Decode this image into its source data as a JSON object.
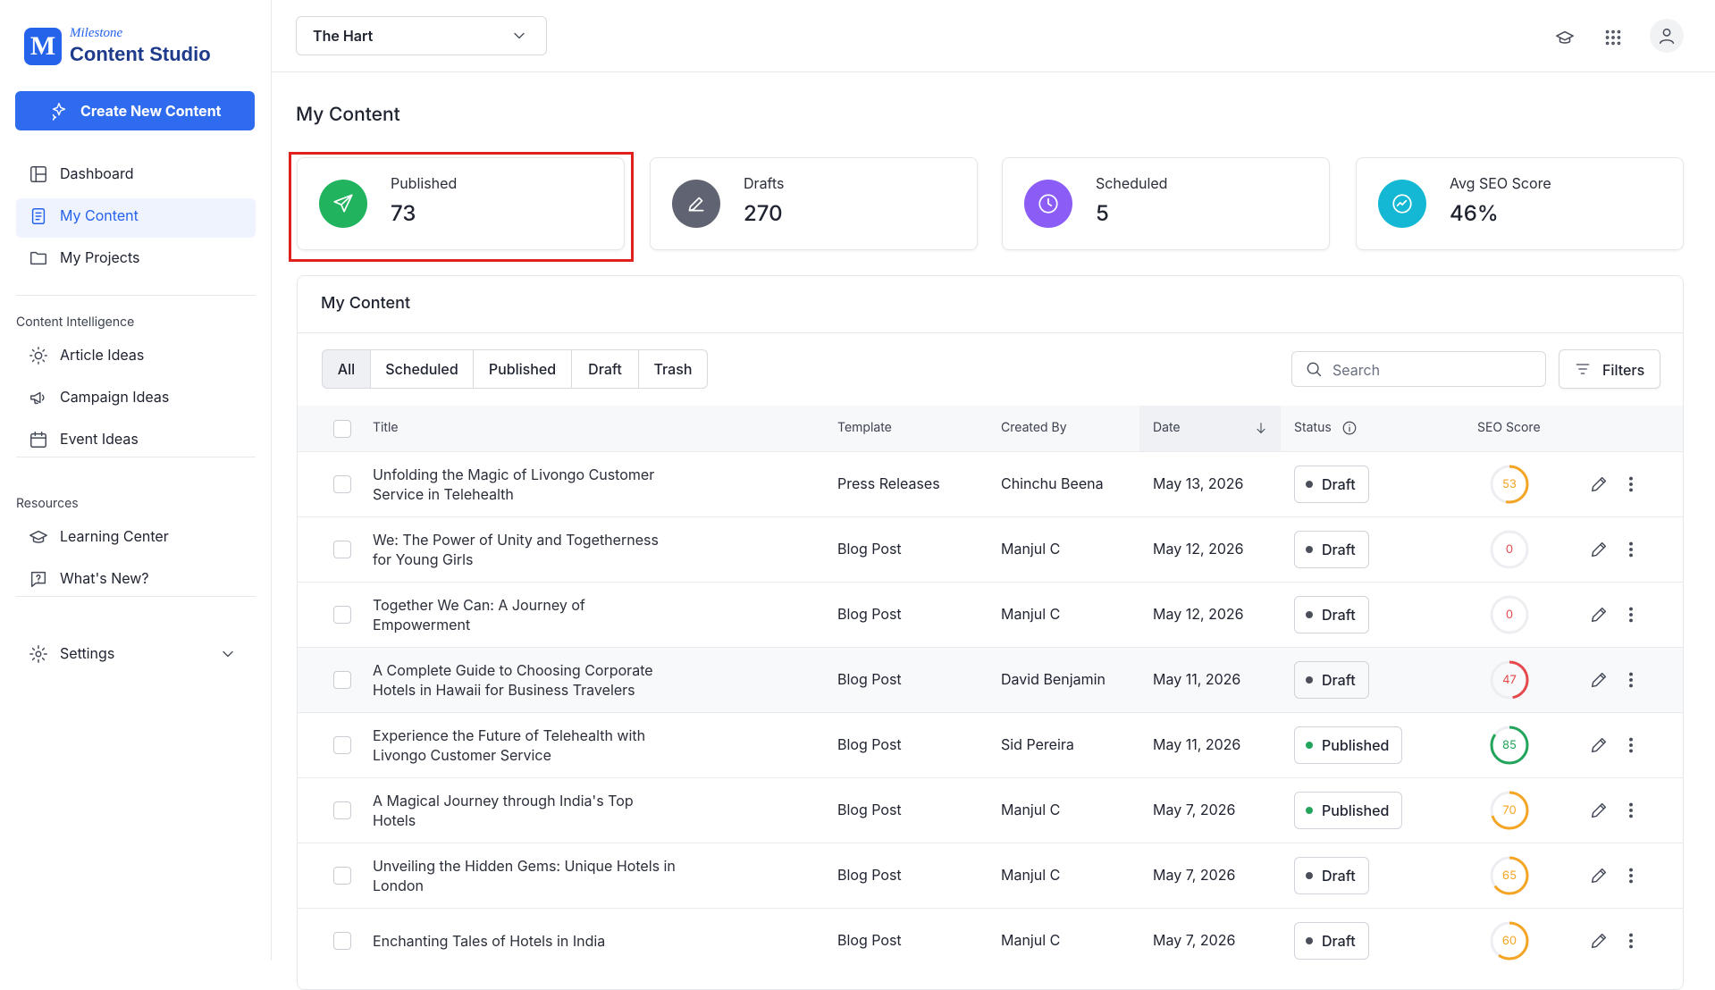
{
  "sidebar": {
    "brand": {
      "small": "Milestone",
      "name": "Content Studio"
    },
    "create_button": "Create New Content",
    "nav": [
      "Dashboard",
      "My Content",
      "My Projects"
    ],
    "sections": [
      {
        "title": "Content Intelligence",
        "items": [
          "Article Ideas",
          "Campaign Ideas",
          "Event Ideas"
        ]
      },
      {
        "title": "Resources",
        "items": [
          "Learning Center",
          "What's New?"
        ]
      }
    ],
    "settings": "Settings"
  },
  "header": {
    "project": "The Hart"
  },
  "page_title": "My Content",
  "stats": [
    {
      "label": "Published",
      "value": "73",
      "color": "#22b35e"
    },
    {
      "label": "Drafts",
      "value": "270",
      "color": "#5f6372"
    },
    {
      "label": "Scheduled",
      "value": "5",
      "color": "#8b5cf6"
    },
    {
      "label": "Avg SEO Score",
      "value": "46%",
      "color": "#14b8d4"
    }
  ],
  "table": {
    "title": "My Content",
    "tabs": [
      "All",
      "Scheduled",
      "Published",
      "Draft",
      "Trash"
    ],
    "search_placeholder": "Search",
    "filters": "Filters",
    "columns": [
      "Title",
      "Template",
      "Created By",
      "Date",
      "Status",
      "SEO Score"
    ],
    "rows": [
      {
        "title": "Unfolding the Magic of Livongo Customer Service in Telehealth",
        "template": "Press Releases",
        "created_by": "Chinchu Beena",
        "date": "May 13, 2026",
        "status": "Draft",
        "seo_score": 53,
        "color": "#f5a524"
      },
      {
        "title": "We: The Power of Unity and Togetherness for Young Girls",
        "template": "Blog Post",
        "created_by": "Manjul C",
        "date": "May 12, 2026",
        "status": "Draft",
        "seo_score": 0,
        "color": "#e5484d"
      },
      {
        "title": "Together We Can: A Journey of Empowerment",
        "template": "Blog Post",
        "created_by": "Manjul C",
        "date": "May 12, 2026",
        "status": "Draft",
        "seo_score": 0,
        "color": "#e5484d"
      },
      {
        "title": "A Complete Guide to Choosing Corporate Hotels in Hawaii for Business Travelers",
        "template": "Blog Post",
        "created_by": "David Benjamin",
        "date": "May 11, 2026",
        "status": "Draft",
        "seo_score": 47,
        "color": "#e5484d"
      },
      {
        "title": "Experience the Future of Telehealth with Livongo Customer Service",
        "template": "Blog Post",
        "created_by": "Sid Pereira",
        "date": "May 11, 2026",
        "status": "Published",
        "seo_score": 85,
        "color": "#22a55b"
      },
      {
        "title": "A Magical Journey through India's Top Hotels",
        "template": "Blog Post",
        "created_by": "Manjul C",
        "date": "May 7, 2026",
        "status": "Published",
        "seo_score": 70,
        "color": "#f5a524"
      },
      {
        "title": "Unveiling the Hidden Gems: Unique Hotels in London",
        "template": "Blog Post",
        "created_by": "Manjul C",
        "date": "May 7, 2026",
        "status": "Draft",
        "seo_score": 65,
        "color": "#f5a524"
      },
      {
        "title": "Enchanting Tales of Hotels in India",
        "template": "Blog Post",
        "created_by": "Manjul C",
        "date": "May 7, 2026",
        "status": "Draft",
        "seo_score": 60,
        "color": "#f5a524"
      }
    ]
  }
}
